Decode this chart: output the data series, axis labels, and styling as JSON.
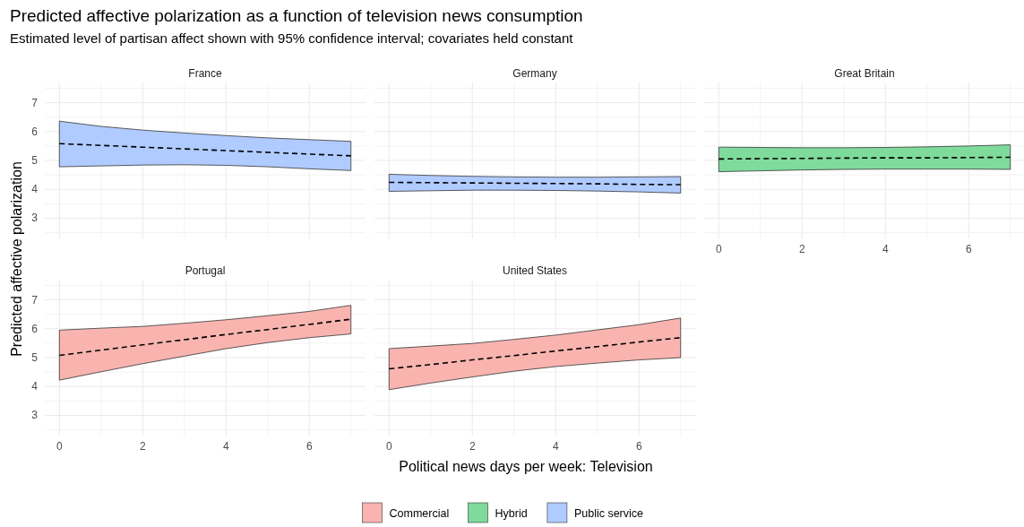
{
  "chart_data": [
    {
      "type": "line",
      "title": "France",
      "annotations": [
        "Predicted affective polarization as a function of television news consumption",
        "Estimated level of partisan affect shown with 95% confidence interval; covariates held constant"
      ],
      "x": [
        0,
        1,
        2,
        3,
        4,
        5,
        6,
        7
      ],
      "xlim": [
        -0.35,
        7.35
      ],
      "ylim": [
        2.3,
        7.7
      ],
      "xticks": [
        0,
        {
          "value": 1,
          "label": null
        },
        2,
        {
          "value": 3,
          "label": null
        },
        4,
        {
          "value": 5,
          "label": null
        },
        6,
        {
          "value": 7,
          "label": null
        }
      ],
      "yticks": [
        {
          "value": 2.5,
          "label": null
        },
        3,
        {
          "value": 3.5,
          "label": null
        },
        4,
        {
          "value": 4.5,
          "label": null
        },
        5,
        {
          "value": 5.5,
          "label": null
        },
        6,
        {
          "value": 6.5,
          "label": null
        },
        7,
        {
          "value": 7.5,
          "label": null
        }
      ],
      "grid": true,
      "legend": "bottom",
      "tick_labels": "y",
      "series": [
        {
          "name": "Public service",
          "color": "#b0cbff",
          "values": [
            null,
            null,
            null,
            null,
            null,
            null,
            null,
            null
          ],
          "lower": [
            4.78,
            4.81,
            4.84,
            4.85,
            4.83,
            4.78,
            4.71,
            4.65
          ],
          "upper": [
            6.36,
            6.18,
            6.05,
            5.95,
            5.86,
            5.78,
            5.72,
            5.66
          ]
        },
        {
          "color": "#000000",
          "line_style": "dashed",
          "values": [
            5.58,
            5.52,
            5.46,
            5.4,
            5.34,
            5.28,
            5.22,
            5.16
          ]
        }
      ]
    },
    {
      "type": "line",
      "title": "Germany",
      "x": [
        0,
        1,
        2,
        3,
        4,
        5,
        6,
        7
      ],
      "xlim": [
        -0.35,
        7.35
      ],
      "ylim": [
        2.3,
        7.7
      ],
      "xticks": [
        0,
        {
          "value": 1,
          "label": null
        },
        2,
        {
          "value": 3,
          "label": null
        },
        4,
        {
          "value": 5,
          "label": null
        },
        6,
        {
          "value": 7,
          "label": null
        }
      ],
      "yticks": [
        {
          "value": 2.5,
          "label": null
        },
        3,
        {
          "value": 3.5,
          "label": null
        },
        4,
        {
          "value": 4.5,
          "label": null
        },
        5,
        {
          "value": 5.5,
          "label": null
        },
        6,
        {
          "value": 6.5,
          "label": null
        },
        7,
        {
          "value": 7.5,
          "label": null
        }
      ],
      "grid": true,
      "tick_labels": false,
      "series": [
        {
          "color": "#b0cbff",
          "values": [
            null,
            null,
            null,
            null,
            null,
            null,
            null,
            null
          ],
          "lower": [
            3.93,
            3.95,
            3.97,
            3.97,
            3.96,
            3.94,
            3.91,
            3.87
          ],
          "upper": [
            4.52,
            4.48,
            4.45,
            4.43,
            4.42,
            4.42,
            4.43,
            4.44
          ]
        },
        {
          "color": "#000000",
          "line_style": "dashed",
          "values": [
            4.24,
            4.23,
            4.22,
            4.21,
            4.2,
            4.19,
            4.17,
            4.16
          ]
        }
      ]
    },
    {
      "type": "line",
      "title": "Great Britain",
      "x": [
        0,
        1,
        2,
        3,
        4,
        5,
        6,
        7
      ],
      "xlim": [
        -0.35,
        7.35
      ],
      "ylim": [
        2.3,
        7.7
      ],
      "xticks": [
        0,
        {
          "value": 1,
          "label": null
        },
        2,
        {
          "value": 3,
          "label": null
        },
        4,
        {
          "value": 5,
          "label": null
        },
        6,
        {
          "value": 7,
          "label": null
        }
      ],
      "yticks": [
        {
          "value": 2.5,
          "label": null
        },
        3,
        {
          "value": 3.5,
          "label": null
        },
        4,
        {
          "value": 4.5,
          "label": null
        },
        5,
        {
          "value": 5.5,
          "label": null
        },
        6,
        {
          "value": 6.5,
          "label": null
        },
        7,
        {
          "value": 7.5,
          "label": null
        }
      ],
      "grid": true,
      "legend": "bottom",
      "tick_labels": "x",
      "series": [
        {
          "name": "Hybrid",
          "color": "#7fdb9b",
          "values": [
            null,
            null,
            null,
            null,
            null,
            null,
            null,
            null
          ],
          "lower": [
            4.61,
            4.64,
            4.67,
            4.69,
            4.7,
            4.7,
            4.7,
            4.69
          ],
          "upper": [
            5.46,
            5.45,
            5.44,
            5.44,
            5.45,
            5.47,
            5.5,
            5.54
          ]
        },
        {
          "color": "#000000",
          "line_style": "dashed",
          "values": [
            5.05,
            5.06,
            5.07,
            5.08,
            5.09,
            5.09,
            5.1,
            5.11
          ]
        }
      ]
    },
    {
      "type": "line",
      "title": "Portugal",
      "ylabel": "Predicted affective polarization",
      "x": [
        0,
        1,
        2,
        3,
        4,
        5,
        6,
        7
      ],
      "xlim": [
        -0.35,
        7.35
      ],
      "ylim": [
        2.3,
        7.7
      ],
      "xticks": [
        0,
        {
          "value": 1,
          "label": null
        },
        2,
        {
          "value": 3,
          "label": null
        },
        4,
        {
          "value": 5,
          "label": null
        },
        6,
        {
          "value": 7,
          "label": null
        }
      ],
      "yticks": [
        {
          "value": 2.5,
          "label": null
        },
        3,
        {
          "value": 3.5,
          "label": null
        },
        4,
        {
          "value": 4.5,
          "label": null
        },
        5,
        {
          "value": 5.5,
          "label": null
        },
        6,
        {
          "value": 6.5,
          "label": null
        },
        7,
        {
          "value": 7.5,
          "label": null
        }
      ],
      "grid": true,
      "legend": "bottom",
      "series": [
        {
          "name": "Commercial",
          "color": "#f9b4b0",
          "values": [
            null,
            null,
            null,
            null,
            null,
            null,
            null,
            null
          ],
          "lower": [
            4.22,
            4.51,
            4.79,
            5.05,
            5.31,
            5.52,
            5.69,
            5.82
          ],
          "upper": [
            5.95,
            6.02,
            6.08,
            6.19,
            6.31,
            6.45,
            6.6,
            6.81
          ]
        },
        {
          "color": "#000000",
          "line_style": "dashed",
          "values": [
            5.08,
            5.26,
            5.44,
            5.62,
            5.8,
            5.97,
            6.15,
            6.33
          ]
        }
      ]
    },
    {
      "type": "line",
      "title": "United States",
      "xlabel": "Political news days per week: Television",
      "x": [
        0,
        1,
        2,
        3,
        4,
        5,
        6,
        7
      ],
      "xlim": [
        -0.35,
        7.35
      ],
      "ylim": [
        2.3,
        7.7
      ],
      "xticks": [
        0,
        {
          "value": 1,
          "label": null
        },
        2,
        {
          "value": 3,
          "label": null
        },
        4,
        {
          "value": 5,
          "label": null
        },
        6,
        {
          "value": 7,
          "label": null
        }
      ],
      "yticks": [
        {
          "value": 2.5,
          "label": null
        },
        3,
        {
          "value": 3.5,
          "label": null
        },
        4,
        {
          "value": 4.5,
          "label": null
        },
        5,
        {
          "value": 5.5,
          "label": null
        },
        6,
        {
          "value": 6.5,
          "label": null
        },
        7,
        {
          "value": 7.5,
          "label": null
        }
      ],
      "grid": true,
      "tick_labels": "x",
      "series": [
        {
          "color": "#f9b4b0",
          "values": [
            null,
            null,
            null,
            null,
            null,
            null,
            null,
            null
          ],
          "lower": [
            3.89,
            4.12,
            4.33,
            4.53,
            4.69,
            4.81,
            4.92,
            5.0
          ],
          "upper": [
            5.31,
            5.4,
            5.49,
            5.63,
            5.78,
            5.96,
            6.14,
            6.37
          ]
        },
        {
          "color": "#000000",
          "line_style": "dashed",
          "values": [
            4.61,
            4.76,
            4.92,
            5.07,
            5.23,
            5.38,
            5.54,
            5.69
          ]
        }
      ]
    }
  ]
}
